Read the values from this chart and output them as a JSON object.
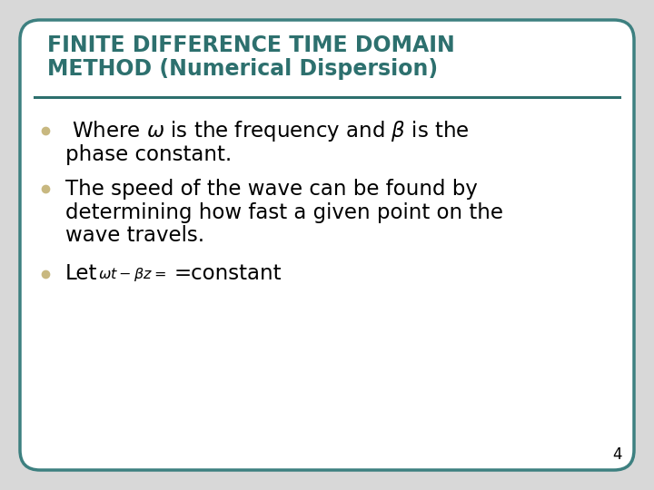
{
  "title_line1": "FINITE DIFFERENCE TIME DOMAIN",
  "title_line2": "METHOD (Numerical Dispersion)",
  "title_color": "#2d706e",
  "background_color": "#ffffff",
  "border_color": "#3d8080",
  "bullet_color": "#c8b880",
  "slide_bg": "#d8d8d8",
  "body_text_color": "#000000",
  "divider_color": "#2d706e",
  "page_number": "4",
  "title_fontsize": 17,
  "body_fontsize": 16.5
}
